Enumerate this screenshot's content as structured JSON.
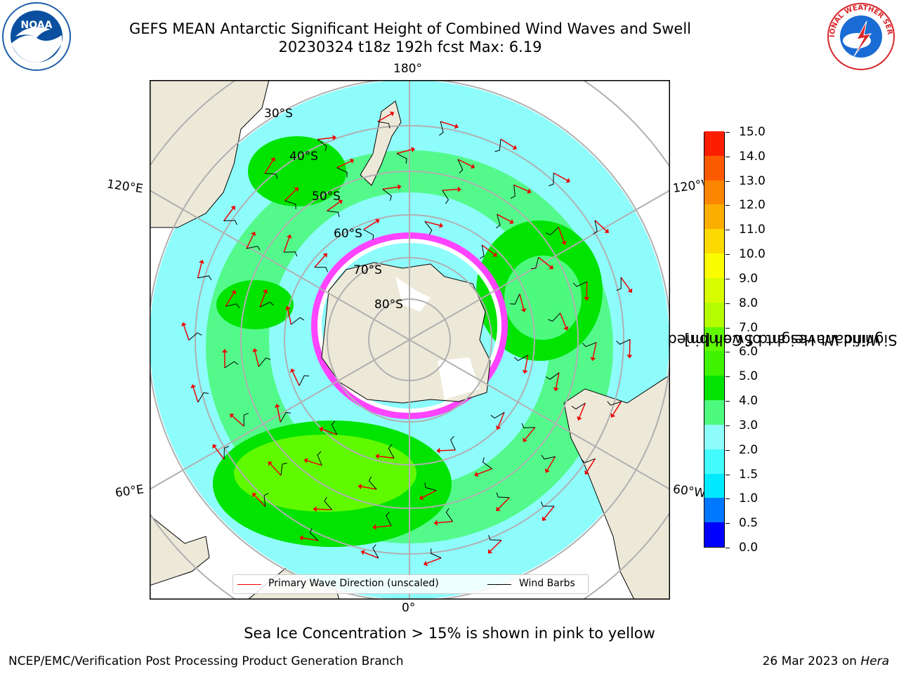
{
  "title": {
    "line1": "GEFS MEAN Antarctic Significant Height of Combined Wind Waves and Swell",
    "line2": "20230324 t18z 192h fcst   Max: 6.19"
  },
  "logos": {
    "left_text": "NOAA",
    "right_text": "NATIONAL WEATHER SERVICE"
  },
  "map": {
    "projection": "south-polar-stereographic",
    "longitude_labels": {
      "top": "180°",
      "bottom": "0°",
      "upper_left": "120°E",
      "upper_right": "120°W",
      "lower_left": "60°E",
      "lower_right": "60°W"
    },
    "latitude_labels": [
      "30°S",
      "40°S",
      "50°S",
      "60°S",
      "70°S",
      "80°S"
    ],
    "colors": {
      "land": "#ede9d9",
      "ocean_low": "#8ffcfc",
      "wave_3_4": "#4dfa7e",
      "wave_4_5": "#00e400",
      "wave_5_6": "#60fa00",
      "ice_edge": "#ff44ff"
    }
  },
  "legend": {
    "primary_wave": "Primary Wave Direction (unscaled)",
    "wind_barbs": "Wind Barbs"
  },
  "colorbar": {
    "title_line1": "Significant Height of Combined",
    "title_line2": "Wind Waves and Swell [m]",
    "ticks": [
      "0.0",
      "0.5",
      "1.0",
      "1.5",
      "2.0",
      "3.0",
      "4.0",
      "5.0",
      "6.0",
      "7.0",
      "8.0",
      "9.0",
      "10.0",
      "11.0",
      "12.0",
      "13.0",
      "14.0",
      "15.0"
    ],
    "colors": [
      "#0000ff",
      "#0077ff",
      "#00eaff",
      "#44fbfb",
      "#8ffcfc",
      "#4dfa7e",
      "#00e400",
      "#3ff200",
      "#60fa00",
      "#b6fc00",
      "#d7fc00",
      "#fcfc00",
      "#fcd900",
      "#fcae00",
      "#fc8600",
      "#fc5a00",
      "#fc1e00"
    ]
  },
  "ice_note": "Sea Ice Concentration > 15% is shown in pink to yellow",
  "footer": {
    "left": "NCEP/EMC/Verification Post Processing Product Generation Branch",
    "right_date": "26 Mar 2023 on ",
    "right_host": "Hera"
  }
}
